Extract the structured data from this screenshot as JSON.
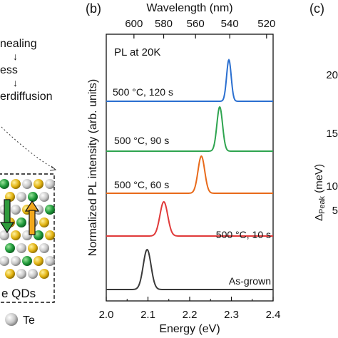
{
  "left_panel": {
    "flow_lines": [
      "nealing",
      "ess",
      "erdiffusion"
    ],
    "arrow_glyph": "↓",
    "qd_label": "e QDs",
    "legend_te": "Te"
  },
  "right_panel": {
    "label": "(c)",
    "ylabel_main": "Δ",
    "ylabel_sub": "Peak",
    "ylabel_unit": " (meV)",
    "ticks": [
      "20",
      "15",
      "10",
      "5"
    ]
  },
  "chart_data": {
    "type": "line",
    "panel_label": "(b)",
    "annotation": "PL at 20K",
    "xlabel": "Energy (eV)",
    "ylabel": "Normalized PL intensity (arb. units)",
    "x2label": "Wavelength (nm)",
    "xlim": [
      2.0,
      2.4
    ],
    "x_ticks": [
      2.0,
      2.1,
      2.2,
      2.3,
      2.4
    ],
    "x_tick_labels": [
      "2.0",
      "2.1",
      "2.2",
      "2.3",
      "2.4"
    ],
    "x2_ticks": [
      600,
      580,
      560,
      540,
      520
    ],
    "x2_tick_labels": [
      "600",
      "580",
      "560",
      "540",
      "520"
    ],
    "y_ticks_shown": false,
    "series": [
      {
        "label": "As-grown",
        "peak": 2.098,
        "fwhm": 0.022,
        "color": "#3a3a3a"
      },
      {
        "label": "500 °C, 10 s",
        "peak": 2.138,
        "fwhm": 0.022,
        "color": "#e03a3a"
      },
      {
        "label": "500 °C, 60 s",
        "peak": 2.228,
        "fwhm": 0.019,
        "color": "#e86a1a"
      },
      {
        "label": "500 °C, 90 s",
        "peak": 2.272,
        "fwhm": 0.016,
        "color": "#2ea44f"
      },
      {
        "label": "500 °C, 120 s",
        "peak": 2.294,
        "fwhm": 0.013,
        "color": "#2a6fd0"
      }
    ],
    "colors": {
      "axes": "#111111",
      "text": "#111111"
    }
  }
}
